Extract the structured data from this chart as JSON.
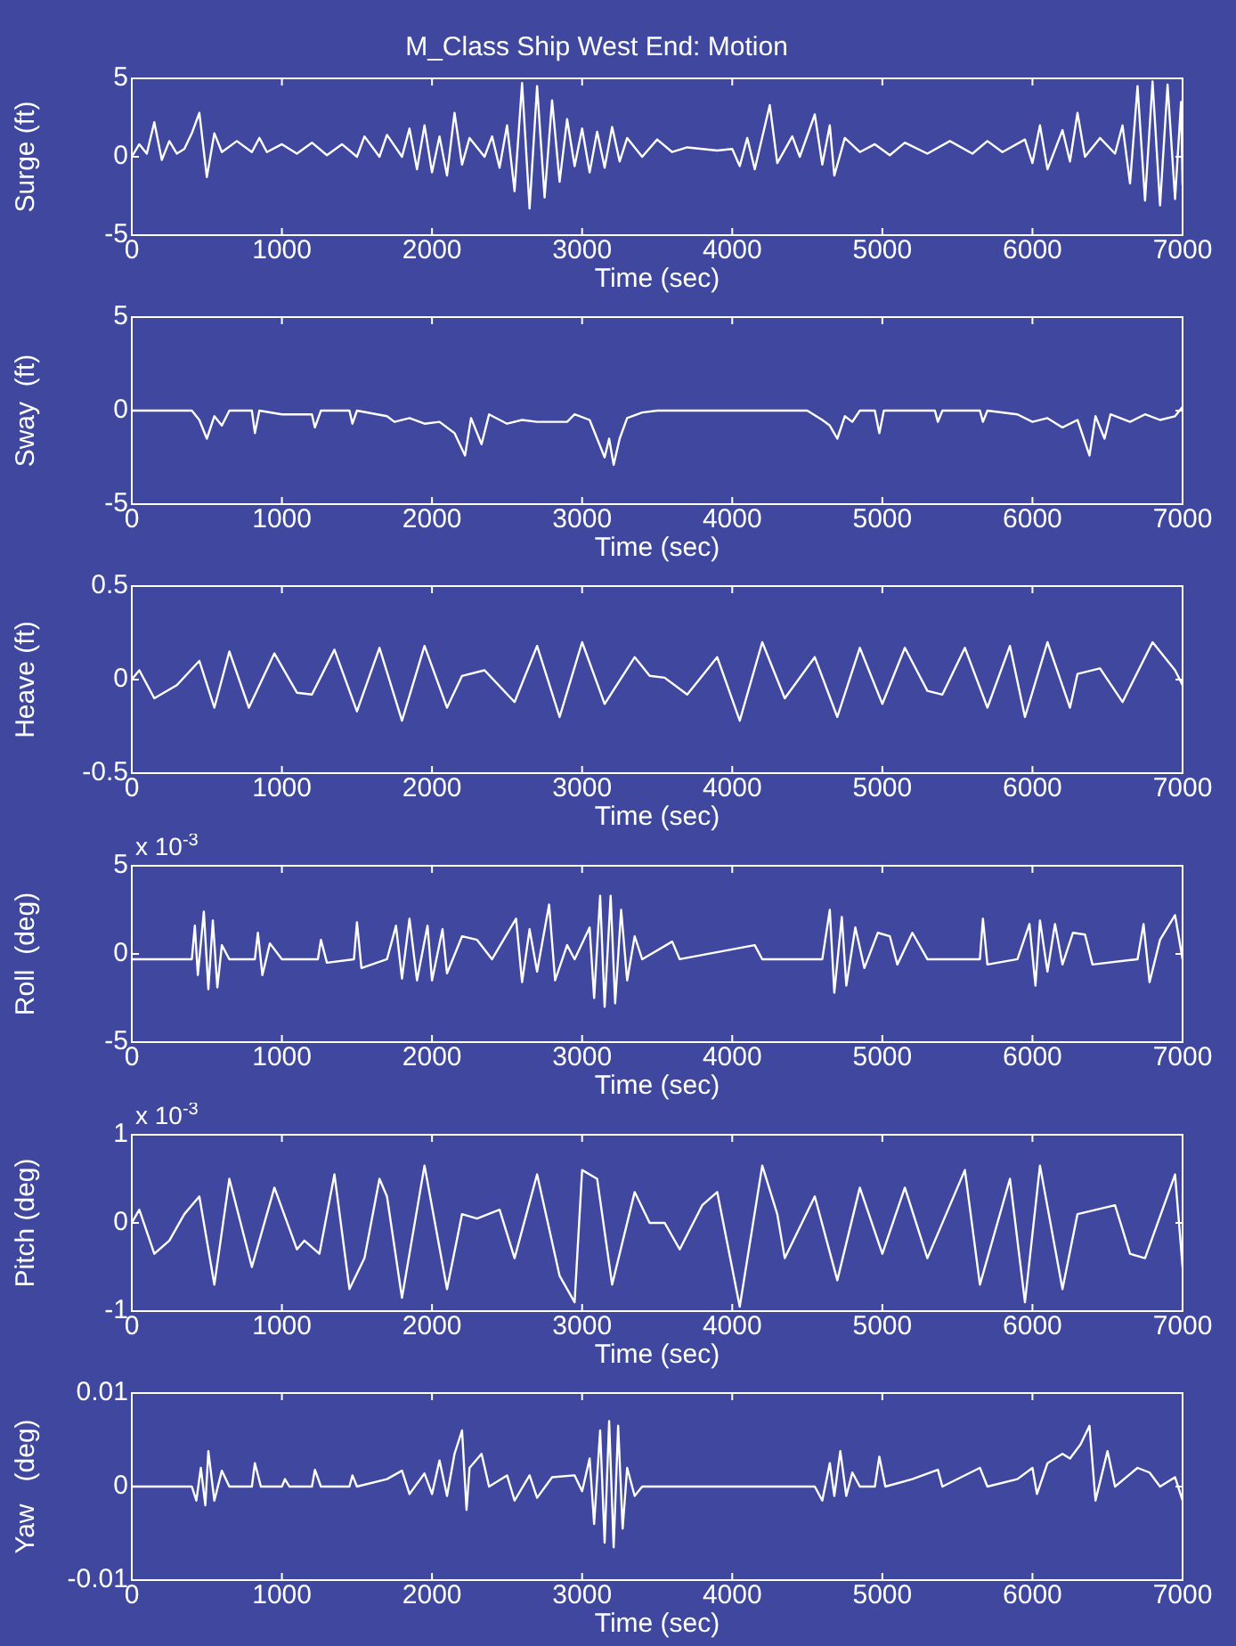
{
  "chart_data": [
    {
      "type": "line",
      "title": "M_Class Ship West End: Motion",
      "xlabel": "Time (sec)",
      "ylabel": "Surge (ft)",
      "xlim": [
        0,
        7000
      ],
      "xticks": [
        0,
        1000,
        2000,
        3000,
        4000,
        5000,
        6000,
        7000
      ],
      "ylim": [
        -5,
        5
      ],
      "yticks": [
        -5,
        0,
        5
      ],
      "grid": false,
      "series": [
        {
          "color": "#ffffff",
          "x": [
            0,
            50,
            100,
            150,
            200,
            250,
            300,
            350,
            400,
            450,
            500,
            550,
            600,
            700,
            800,
            850,
            900,
            1000,
            1100,
            1200,
            1300,
            1400,
            1500,
            1550,
            1650,
            1700,
            1800,
            1850,
            1900,
            1950,
            2000,
            2050,
            2100,
            2150,
            2200,
            2250,
            2350,
            2400,
            2450,
            2500,
            2550,
            2600,
            2650,
            2700,
            2750,
            2800,
            2850,
            2900,
            2950,
            3000,
            3050,
            3100,
            3150,
            3200,
            3250,
            3300,
            3400,
            3500,
            3600,
            3700,
            3900,
            4000,
            4050,
            4100,
            4150,
            4250,
            4300,
            4400,
            4450,
            4550,
            4600,
            4650,
            4680,
            4750,
            4850,
            4950,
            5050,
            5150,
            5300,
            5450,
            5600,
            5700,
            5800,
            5950,
            6000,
            6050,
            6100,
            6200,
            6250,
            6300,
            6350,
            6450,
            6550,
            6600,
            6650,
            6700,
            6750,
            6800,
            6850,
            6900,
            6950,
            6990,
            7000
          ],
          "values": [
            0,
            0.8,
            0.2,
            2.2,
            -0.2,
            1,
            0.2,
            0.5,
            1.5,
            2.8,
            -1.3,
            1.5,
            0.3,
            1,
            0.3,
            1.2,
            0.3,
            0.8,
            0.2,
            0.9,
            0.1,
            0.8,
            0,
            1.3,
            0,
            1.4,
            0,
            1.8,
            -0.8,
            2,
            -1,
            1.3,
            -1.2,
            2.8,
            -0.5,
            1.2,
            0,
            1.3,
            -0.7,
            2,
            -2.2,
            4.7,
            -3.3,
            4.5,
            -2.6,
            3.6,
            -1.6,
            2.4,
            -0.6,
            1.8,
            -1,
            1.6,
            -0.7,
            1.9,
            -0.3,
            1.2,
            0,
            1.1,
            0.3,
            0.6,
            0.4,
            0.5,
            -0.6,
            1.2,
            -0.8,
            3.3,
            -0.4,
            1.3,
            0,
            2.7,
            -0.5,
            2,
            -1.2,
            1.2,
            0.3,
            0.8,
            0.1,
            0.9,
            0.2,
            1,
            0.2,
            1,
            0.3,
            1.1,
            -0.4,
            2,
            -0.8,
            1.7,
            -0.3,
            2.8,
            0,
            1.2,
            0.2,
            2,
            -1.7,
            4.5,
            -2.8,
            4.8,
            -3.1,
            4.6,
            -2.7,
            3.5,
            -1.8
          ]
        }
      ]
    },
    {
      "type": "line",
      "xlabel": "Time (sec)",
      "ylabel": "Sway  (ft)",
      "xlim": [
        0,
        7000
      ],
      "xticks": [
        0,
        1000,
        2000,
        3000,
        4000,
        5000,
        6000,
        7000
      ],
      "ylim": [
        -5,
        5
      ],
      "yticks": [
        -5,
        0,
        5
      ],
      "grid": false,
      "series": [
        {
          "color": "#ffffff",
          "x": [
            0,
            400,
            450,
            500,
            550,
            600,
            650,
            800,
            820,
            850,
            1000,
            1200,
            1220,
            1260,
            1450,
            1470,
            1500,
            1700,
            1750,
            1850,
            1950,
            2050,
            2150,
            2220,
            2260,
            2330,
            2380,
            2500,
            2600,
            2700,
            2900,
            2950,
            3050,
            3100,
            3150,
            3180,
            3210,
            3250,
            3300,
            3400,
            3500,
            4500,
            4600,
            4650,
            4700,
            4750,
            4800,
            4850,
            4950,
            4980,
            5010,
            5350,
            5370,
            5400,
            5650,
            5670,
            5700,
            5900,
            6000,
            6100,
            6200,
            6300,
            6380,
            6420,
            6480,
            6520,
            6650,
            6750,
            6850,
            6950,
            7000
          ],
          "values": [
            0,
            0,
            -0.5,
            -1.5,
            -0.3,
            -0.8,
            0,
            0,
            -1.2,
            0,
            -0.2,
            -0.2,
            -0.9,
            0,
            0,
            -0.7,
            0,
            -0.3,
            -0.6,
            -0.4,
            -0.7,
            -0.6,
            -1.2,
            -2.4,
            -0.4,
            -1.8,
            -0.2,
            -0.7,
            -0.5,
            -0.6,
            -0.6,
            -0.2,
            -0.5,
            -1.5,
            -2.5,
            -1.5,
            -2.9,
            -1.5,
            -0.4,
            -0.1,
            0,
            0,
            -0.5,
            -0.8,
            -1.5,
            -0.3,
            -0.6,
            0,
            0,
            -1.2,
            0,
            0,
            -0.6,
            0,
            0,
            -0.6,
            0,
            -0.2,
            -0.6,
            -0.4,
            -0.9,
            -0.5,
            -2.4,
            -0.3,
            -1.5,
            -0.2,
            -0.6,
            -0.2,
            -0.5,
            -0.3,
            0.2
          ]
        }
      ]
    },
    {
      "type": "line",
      "xlabel": "Time (sec)",
      "ylabel": "Heave (ft)",
      "xlim": [
        0,
        7000
      ],
      "xticks": [
        0,
        1000,
        2000,
        3000,
        4000,
        5000,
        6000,
        7000
      ],
      "ylim": [
        -0.5,
        0.5
      ],
      "yticks": [
        -0.5,
        0,
        0.5
      ],
      "grid": false,
      "series": [
        {
          "color": "#ffffff",
          "x": [
            0,
            50,
            150,
            300,
            450,
            550,
            650,
            780,
            950,
            1100,
            1200,
            1350,
            1500,
            1650,
            1800,
            1950,
            2100,
            2200,
            2350,
            2550,
            2700,
            2850,
            3000,
            3150,
            3350,
            3450,
            3550,
            3700,
            3900,
            4050,
            4200,
            4350,
            4550,
            4700,
            4850,
            5000,
            5150,
            5300,
            5400,
            5550,
            5700,
            5850,
            5950,
            6100,
            6250,
            6300,
            6450,
            6600,
            6800,
            6950,
            7000
          ],
          "values": [
            0,
            0.05,
            -0.1,
            -0.03,
            0.1,
            -0.15,
            0.15,
            -0.15,
            0.14,
            -0.07,
            -0.08,
            0.16,
            -0.17,
            0.17,
            -0.22,
            0.18,
            -0.15,
            0.02,
            0.05,
            -0.12,
            0.18,
            -0.2,
            0.2,
            -0.13,
            0.12,
            0.02,
            0.01,
            -0.08,
            0.12,
            -0.22,
            0.2,
            -0.1,
            0.12,
            -0.2,
            0.17,
            -0.13,
            0.17,
            -0.06,
            -0.08,
            0.17,
            -0.15,
            0.18,
            -0.2,
            0.2,
            -0.15,
            0.03,
            0.06,
            -0.12,
            0.2,
            0.05,
            -0.03
          ]
        }
      ]
    },
    {
      "type": "line",
      "xlabel": "Time (sec)",
      "ylabel": "Roll  (deg)",
      "annotations": [
        "x 10$^{-3}$"
      ],
      "xlim": [
        0,
        7000
      ],
      "xticks": [
        0,
        1000,
        2000,
        3000,
        4000,
        5000,
        6000,
        7000
      ],
      "ylim": [
        -5,
        5
      ],
      "yticks": [
        -5,
        0,
        5
      ],
      "grid": false,
      "series": [
        {
          "color": "#ffffff",
          "x": [
            0,
            400,
            420,
            440,
            480,
            510,
            540,
            570,
            600,
            650,
            820,
            840,
            870,
            920,
            1000,
            1240,
            1260,
            1300,
            1480,
            1500,
            1530,
            1700,
            1760,
            1800,
            1850,
            1900,
            1970,
            2000,
            2070,
            2100,
            2200,
            2300,
            2400,
            2560,
            2600,
            2650,
            2700,
            2780,
            2820,
            2900,
            2950,
            3050,
            3080,
            3120,
            3150,
            3190,
            3220,
            3260,
            3300,
            3350,
            3400,
            3600,
            3650,
            4150,
            4200,
            4600,
            4650,
            4680,
            4730,
            4760,
            4820,
            4880,
            4970,
            5050,
            5100,
            5200,
            5300,
            5650,
            5670,
            5700,
            5900,
            5980,
            6020,
            6050,
            6100,
            6150,
            6200,
            6270,
            6350,
            6400,
            6700,
            6740,
            6780,
            6850,
            6950,
            7000
          ],
          "values": [
            -0.3,
            -0.3,
            1.6,
            -1.2,
            2.4,
            -2,
            1.9,
            -1.9,
            0.5,
            -0.3,
            -0.3,
            1.2,
            -1.2,
            0.6,
            -0.3,
            -0.3,
            0.8,
            -0.5,
            -0.3,
            1.8,
            -0.8,
            -0.3,
            1.6,
            -1.4,
            2,
            -1.5,
            1.6,
            -1.5,
            1.4,
            -1.1,
            1,
            0.8,
            -0.3,
            2,
            -1.6,
            1.4,
            -1,
            2.8,
            -1.5,
            0.5,
            -0.3,
            1.5,
            -2.5,
            3.3,
            -3,
            3.3,
            -2.8,
            2.5,
            -1.5,
            1,
            -0.3,
            0.7,
            -0.3,
            0.5,
            -0.3,
            -0.3,
            2.5,
            -2.2,
            2.1,
            -1.8,
            1.5,
            -0.8,
            1.2,
            1,
            -0.6,
            1.2,
            -0.3,
            -0.3,
            2,
            -0.6,
            -0.3,
            1.7,
            -1.8,
            1.9,
            -1,
            1.7,
            -0.6,
            1.2,
            1.1,
            -0.6,
            -0.3,
            1.7,
            -1.6,
            0.8,
            2.2,
            -0.3
          ]
        }
      ]
    },
    {
      "type": "line",
      "xlabel": "Time (sec)",
      "ylabel": "Pitch (deg)",
      "annotations": [
        "x 10$^{-3}$"
      ],
      "xlim": [
        0,
        7000
      ],
      "xticks": [
        0,
        1000,
        2000,
        3000,
        4000,
        5000,
        6000,
        7000
      ],
      "ylim": [
        -1,
        1
      ],
      "yticks": [
        -1,
        0,
        1
      ],
      "grid": false,
      "series": [
        {
          "color": "#ffffff",
          "x": [
            0,
            50,
            150,
            250,
            350,
            450,
            550,
            650,
            800,
            950,
            1100,
            1150,
            1250,
            1350,
            1450,
            1550,
            1650,
            1700,
            1800,
            1950,
            2100,
            2200,
            2300,
            2450,
            2550,
            2700,
            2850,
            2950,
            3000,
            3100,
            3200,
            3350,
            3450,
            3550,
            3650,
            3800,
            3900,
            4050,
            4200,
            4300,
            4350,
            4550,
            4700,
            4850,
            5000,
            5150,
            5300,
            5550,
            5650,
            5850,
            5950,
            6050,
            6200,
            6300,
            6550,
            6650,
            6750,
            6950,
            7000
          ],
          "values": [
            0,
            0.15,
            -0.35,
            -0.2,
            0.1,
            0.3,
            -0.7,
            0.5,
            -0.5,
            0.4,
            -0.3,
            -0.2,
            -0.35,
            0.55,
            -0.75,
            -0.4,
            0.5,
            0.3,
            -0.85,
            0.65,
            -0.75,
            0.1,
            0.05,
            0.15,
            -0.4,
            0.55,
            -0.6,
            -0.9,
            0.6,
            0.5,
            -0.7,
            0.35,
            0,
            0,
            -0.3,
            0.2,
            0.35,
            -0.95,
            0.65,
            0.1,
            -0.4,
            0.3,
            -0.65,
            0.4,
            -0.35,
            0.4,
            -0.4,
            0.6,
            -0.7,
            0.5,
            -0.9,
            0.65,
            -0.75,
            0.1,
            0.2,
            -0.35,
            -0.4,
            0.55,
            -0.5
          ]
        }
      ]
    },
    {
      "type": "line",
      "xlabel": "Time (sec)",
      "ylabel": "Yaw   (deg)",
      "xlim": [
        0,
        7000
      ],
      "xticks": [
        0,
        1000,
        2000,
        3000,
        4000,
        5000,
        6000,
        7000
      ],
      "ylim": [
        -0.01,
        0.01
      ],
      "yticks": [
        -0.01,
        0,
        0.01
      ],
      "grid": false,
      "series": [
        {
          "color": "#ffffff",
          "x": [
            0,
            400,
            430,
            460,
            490,
            510,
            550,
            600,
            650,
            800,
            820,
            860,
            1000,
            1020,
            1050,
            1200,
            1220,
            1260,
            1450,
            1470,
            1500,
            1700,
            1800,
            1850,
            1950,
            2000,
            2050,
            2100,
            2150,
            2200,
            2230,
            2250,
            2330,
            2380,
            2500,
            2550,
            2650,
            2700,
            2800,
            2950,
            3000,
            3050,
            3080,
            3120,
            3150,
            3180,
            3210,
            3240,
            3270,
            3300,
            3350,
            3400,
            4550,
            4600,
            4650,
            4680,
            4720,
            4760,
            4800,
            4850,
            4950,
            4980,
            5020,
            5200,
            5370,
            5400,
            5650,
            5700,
            5900,
            6000,
            6030,
            6100,
            6200,
            6250,
            6320,
            6380,
            6420,
            6500,
            6550,
            6700,
            6780,
            6850,
            6950,
            7000
          ],
          "values": [
            0,
            0,
            -0.0015,
            0.002,
            -0.002,
            0.0038,
            -0.0015,
            0.0017,
            0,
            0,
            0.0025,
            0,
            0,
            0.0008,
            0,
            0,
            0.0018,
            0,
            0,
            0.0012,
            0,
            0.0008,
            0.0017,
            -0.0008,
            0.0014,
            -0.0008,
            0.0028,
            -0.001,
            0.0035,
            0.006,
            -0.0025,
            0.002,
            0.0035,
            0,
            0.0012,
            -0.0015,
            0.0012,
            -0.0012,
            0.001,
            0.0012,
            -0.0005,
            0.003,
            -0.004,
            0.006,
            -0.006,
            0.007,
            -0.0065,
            0.0065,
            -0.0045,
            0.002,
            -0.001,
            0,
            0,
            -0.0015,
            0.0025,
            -0.001,
            0.0038,
            -0.001,
            0.0015,
            0,
            0,
            0.0032,
            0,
            0.0008,
            0.0018,
            0,
            0.002,
            0,
            0.0008,
            0.002,
            -0.0008,
            0.0025,
            0.0035,
            0.003,
            0.0045,
            0.0065,
            -0.0015,
            0.0038,
            0,
            0.002,
            0.0015,
            0,
            0.001,
            -0.0015
          ]
        }
      ]
    }
  ]
}
